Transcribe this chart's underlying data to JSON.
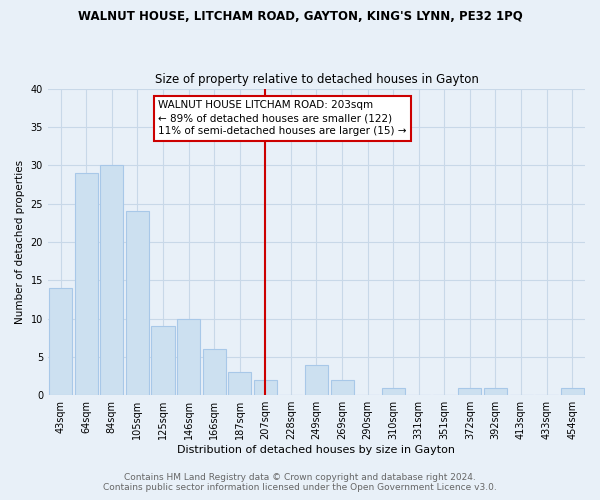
{
  "title": "WALNUT HOUSE, LITCHAM ROAD, GAYTON, KING'S LYNN, PE32 1PQ",
  "subtitle": "Size of property relative to detached houses in Gayton",
  "xlabel": "Distribution of detached houses by size in Gayton",
  "ylabel": "Number of detached properties",
  "categories": [
    "43sqm",
    "64sqm",
    "84sqm",
    "105sqm",
    "125sqm",
    "146sqm",
    "166sqm",
    "187sqm",
    "207sqm",
    "228sqm",
    "249sqm",
    "269sqm",
    "290sqm",
    "310sqm",
    "331sqm",
    "351sqm",
    "372sqm",
    "392sqm",
    "413sqm",
    "433sqm",
    "454sqm"
  ],
  "values": [
    14,
    29,
    30,
    24,
    9,
    10,
    6,
    3,
    2,
    0,
    4,
    2,
    0,
    1,
    0,
    0,
    1,
    1,
    0,
    0,
    1
  ],
  "bar_color": "#cce0f0",
  "bar_edge_color": "#a8c8e8",
  "vline_x": 8,
  "vline_color": "#cc0000",
  "annotation_text": "WALNUT HOUSE LITCHAM ROAD: 203sqm\n← 89% of detached houses are smaller (122)\n11% of semi-detached houses are larger (15) →",
  "annotation_box_color": "#ffffff",
  "annotation_box_edge": "#cc0000",
  "ylim": [
    0,
    40
  ],
  "yticks": [
    0,
    5,
    10,
    15,
    20,
    25,
    30,
    35,
    40
  ],
  "footer1": "Contains HM Land Registry data © Crown copyright and database right 2024.",
  "footer2": "Contains public sector information licensed under the Open Government Licence v3.0.",
  "title_fontsize": 8.5,
  "subtitle_fontsize": 8.5,
  "xlabel_fontsize": 8,
  "ylabel_fontsize": 7.5,
  "tick_fontsize": 7,
  "annotation_fontsize": 7.5,
  "footer_fontsize": 6.5,
  "background_color": "#e8f0f8",
  "plot_bg_color": "#e8f0f8",
  "grid_color": "#c8d8e8"
}
